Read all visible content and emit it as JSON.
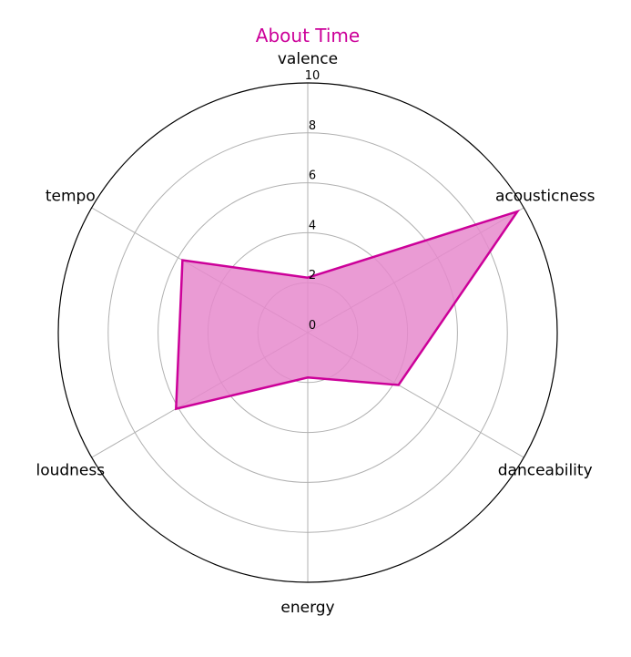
{
  "chart_data": {
    "type": "radar",
    "title": "About Time",
    "axes": [
      "valence",
      "acousticness",
      "danceability",
      "energy",
      "loudness",
      "tempo"
    ],
    "series": [
      {
        "values": [
          2.2,
          9.7,
          4.2,
          1.8,
          6.1,
          5.8
        ]
      }
    ],
    "rlim": [
      0,
      10
    ],
    "r_ticks": [
      "0",
      "2",
      "4",
      "6",
      "8",
      "10"
    ],
    "grid": true,
    "colors": {
      "series": "#cc0099",
      "fill": "#e68acc",
      "title": "#cc0099",
      "grid": "#b0b0b0",
      "outer": "#000000"
    }
  }
}
